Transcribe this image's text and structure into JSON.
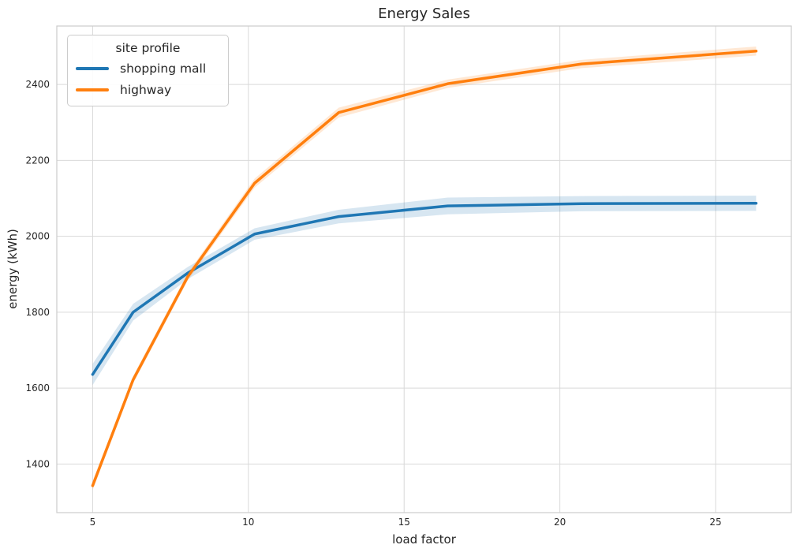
{
  "figure": {
    "title": "Energy Sales",
    "xlabel": "load factor",
    "ylabel": "energy (kWh)"
  },
  "legend": {
    "title": "site profile",
    "entries": [
      {
        "label": "shopping mall",
        "color": "#1f77b4"
      },
      {
        "label": "highway",
        "color": "#ff7f0e"
      }
    ]
  },
  "chart_data": {
    "type": "line",
    "title": "Energy Sales",
    "xlabel": "load factor",
    "ylabel": "energy (kWh)",
    "xlim": [
      3.85,
      27.43
    ],
    "ylim": [
      1272,
      2554
    ],
    "x_ticks": [
      5,
      10,
      15,
      20,
      25
    ],
    "y_ticks": [
      1400,
      1600,
      1800,
      2000,
      2200,
      2400
    ],
    "grid": true,
    "legend_position": "upper left",
    "legend_title": "site profile",
    "x": [
      5.0,
      6.3,
      8.05,
      10.2,
      12.9,
      16.4,
      20.7,
      26.3
    ],
    "series": [
      {
        "name": "shopping mall",
        "color": "#1f77b4",
        "values": [
          1636,
          1800,
          1903,
          2006,
          2052,
          2080,
          2086,
          2087
        ],
        "ci": [
          28,
          22,
          16,
          15,
          18,
          22,
          20,
          20
        ]
      },
      {
        "name": "highway",
        "color": "#ff7f0e",
        "values": [
          1343,
          1622,
          1893,
          2140,
          2326,
          2402,
          2454,
          2488
        ],
        "ci": [
          12,
          10,
          10,
          12,
          13,
          11,
          11,
          12
        ]
      }
    ],
    "band_opacity": 0.18,
    "grid_color": "#d9d9d9",
    "spine_color": "#cccccc"
  }
}
